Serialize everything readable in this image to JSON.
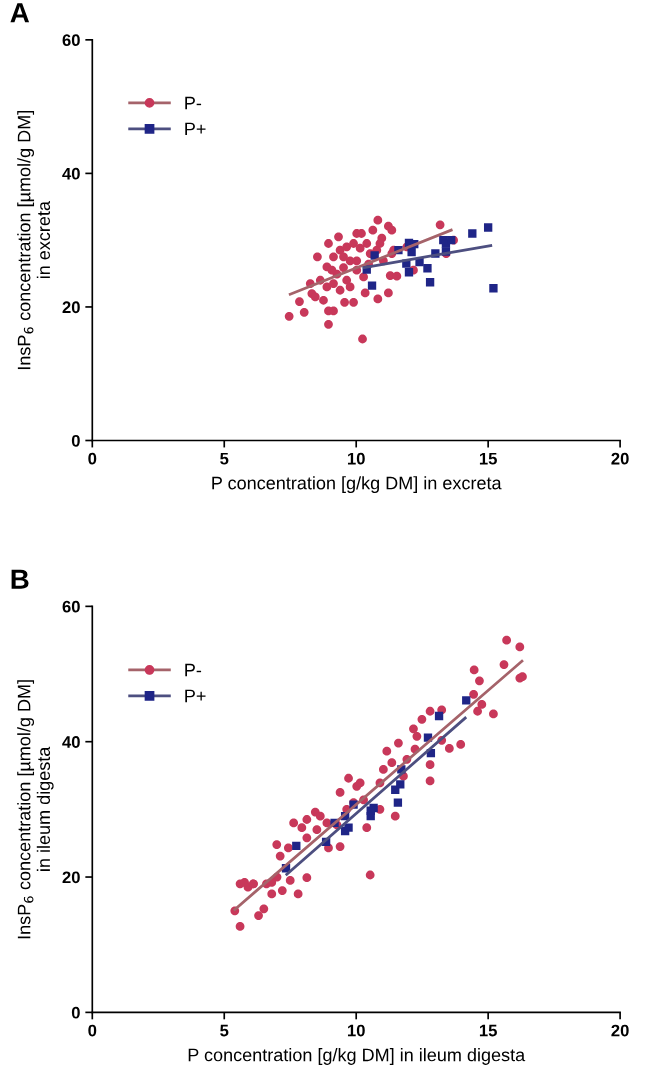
{
  "chart_data": [
    {
      "type": "scatter",
      "title": "A",
      "xlabel": "P concentration [g/kg DM] in excreta",
      "ylabel": "InsP$_{6}$ concentration [µmol/g DM]\nin excreta",
      "xlim": [
        0,
        20
      ],
      "ylim": [
        0,
        60
      ],
      "xticks": [
        0,
        5,
        10,
        15,
        20
      ],
      "yticks": [
        0,
        20,
        40,
        60
      ],
      "grid": false,
      "legend": "top left",
      "series": [
        {
          "name": "P-",
          "color": "#c8385a",
          "marker": "circle",
          "x": [
            7.46,
            7.85,
            8.03,
            8.95,
            8.95,
            9.14,
            10.24,
            10.82,
            11.22,
            13.18,
            8.53,
            9.33,
            10.02,
            10.2,
            10.63,
            10.97,
            11.35,
            8.32,
            8.45,
            8.76,
            9.56,
            9.9,
            10.82,
            11.22,
            10.34,
            11.29,
            11.54,
            12.17,
            11.42,
            11.92,
            13.41,
            13.69,
            8.95,
            8.89,
            8.64,
            8.26,
            9.14,
            9.39,
            9.64,
            9.9,
            10.15,
            10.4,
            10.53,
            9.77,
            9.52,
            9.27,
            10.02,
            10.28,
            9.64,
            9.14,
            9.39,
            9.77,
            8.89,
            10.02,
            9.52,
            9.08,
            11.03,
            10.78,
            10.9,
            10.47,
            11.35
          ],
          "values": [
            18.6,
            20.8,
            19.2,
            17.4,
            19.4,
            19.4,
            15.2,
            33.0,
            32.1,
            32.3,
            27.5,
            30.5,
            31.0,
            31.0,
            31.5,
            30.3,
            31.5,
            22.0,
            21.5,
            21.0,
            20.7,
            20.7,
            21.2,
            22.1,
            22.1,
            24.7,
            24.6,
            25.5,
            28.5,
            29.0,
            28.0,
            30.0,
            29.5,
            26.0,
            24.0,
            23.5,
            27.5,
            28.5,
            29.0,
            29.5,
            28.8,
            29.5,
            28.0,
            26.9,
            25.9,
            24.9,
            25.5,
            24.5,
            24.0,
            23.5,
            22.5,
            23.0,
            23.0,
            26.9,
            27.5,
            25.5,
            26.9,
            28.5,
            29.5,
            26.4,
            28.0
          ]
        },
        {
          "name": "P+",
          "color": "#1f2587",
          "marker": "square",
          "x": [
            10.4,
            10.6,
            10.7,
            11.6,
            12.0,
            12.2,
            12.1,
            11.9,
            12.0,
            12.4,
            12.7,
            12.8,
            13.0,
            13.3,
            13.4,
            13.4,
            13.6,
            14.4,
            15.0,
            15.2
          ],
          "values": [
            25.6,
            23.2,
            27.7,
            28.5,
            29.6,
            29.4,
            28.2,
            26.5,
            25.2,
            26.7,
            25.8,
            23.7,
            28.0,
            30.0,
            29.5,
            28.3,
            30.0,
            31.0,
            31.9,
            22.8
          ]
        },
        {
          "type": "line",
          "color": "#a5636a",
          "marker": "none",
          "x": [
            7.5,
            13.6
          ],
          "values": [
            21.9,
            31.5
          ]
        },
        {
          "type": "line",
          "color": "#4d4f80",
          "marker": "none",
          "x": [
            10.3,
            15.1
          ],
          "values": [
            25.9,
            29.2
          ]
        }
      ]
    },
    {
      "type": "scatter",
      "title": "B",
      "xlabel": "P concentration [g/kg DM] in ileum digesta",
      "ylabel": "InsP$_{6}$ concentration [µmol/g DM]\nin ileum digesta",
      "xlim": [
        0,
        20
      ],
      "ylim": [
        0,
        60
      ],
      "xticks": [
        0,
        5,
        10,
        15,
        20
      ],
      "yticks": [
        0,
        20,
        40,
        60
      ],
      "grid": false,
      "legend": "top left",
      "series": [
        {
          "name": "P-",
          "color": "#c8385a",
          "marker": "circle",
          "x": [
            5.4,
            5.6,
            5.6,
            5.9,
            6.1,
            6.3,
            6.5,
            6.6,
            6.8,
            7.0,
            7.2,
            7.5,
            7.8,
            5.77,
            6.11,
            6.8,
            6.99,
            7.12,
            7.43,
            7.63,
            7.94,
            8.13,
            8.13,
            8.45,
            8.13,
            8.51,
            8.89,
            9.27,
            9.39,
            8.95,
            9.39,
            9.71,
            10.02,
            10.28,
            10.4,
            10.53,
            10.9,
            10.9,
            11.16,
            11.35,
            11.48,
            11.6,
            11.79,
            12.17,
            12.23,
            12.49,
            12.8,
            12.8,
            12.8,
            13.24,
            13.24,
            13.53,
            13.96,
            14.47,
            14.67,
            14.45,
            14.76,
            14.6,
            15.2,
            15.6,
            15.7,
            16.2,
            16.2,
            16.3,
            11.92,
            12.3,
            11.03,
            10.15,
            9.9,
            9.64,
            8.64
          ],
          "values": [
            15.0,
            12.7,
            19.0,
            18.5,
            19.0,
            14.3,
            15.3,
            19.0,
            17.5,
            20.0,
            18.0,
            19.5,
            17.5,
            19.2,
            19.0,
            19.2,
            24.8,
            23.1,
            24.3,
            28.0,
            27.3,
            28.5,
            25.8,
            29.6,
            19.9,
            27.0,
            28.0,
            27.7,
            24.5,
            24.3,
            32.5,
            34.6,
            33.4,
            31.4,
            27.3,
            20.3,
            33.9,
            30.0,
            38.6,
            36.9,
            29.0,
            39.8,
            34.9,
            41.9,
            38.9,
            43.3,
            44.5,
            36.6,
            34.2,
            44.7,
            40.2,
            39.0,
            39.6,
            50.6,
            49.0,
            47.0,
            45.5,
            44.5,
            44.1,
            51.4,
            55.0,
            54.0,
            49.4,
            49.6,
            37.4,
            40.8,
            35.9,
            33.9,
            31.0,
            30.0,
            29.0
          ]
        },
        {
          "name": "P+",
          "color": "#1f2587",
          "marker": "square",
          "x": [
            7.34,
            7.73,
            8.86,
            9.18,
            9.58,
            9.71,
            9.58,
            9.9,
            10.55,
            10.66,
            10.55,
            11.48,
            11.67,
            11.58,
            11.71,
            12.72,
            12.83,
            13.14,
            14.17
          ],
          "values": [
            21.3,
            24.6,
            25.2,
            28.0,
            26.8,
            27.3,
            29.0,
            30.7,
            29.0,
            30.2,
            29.8,
            32.9,
            33.7,
            31.0,
            35.9,
            40.6,
            38.3,
            43.8,
            46.1
          ]
        },
        {
          "type": "line",
          "color": "#a5636a",
          "marker": "none",
          "x": [
            5.4,
            16.28
          ],
          "values": [
            15.2,
            51.9
          ]
        },
        {
          "type": "line",
          "color": "#4d4f80",
          "marker": "none",
          "x": [
            7.37,
            14.13
          ],
          "values": [
            20.4,
            43.5
          ]
        }
      ]
    }
  ]
}
